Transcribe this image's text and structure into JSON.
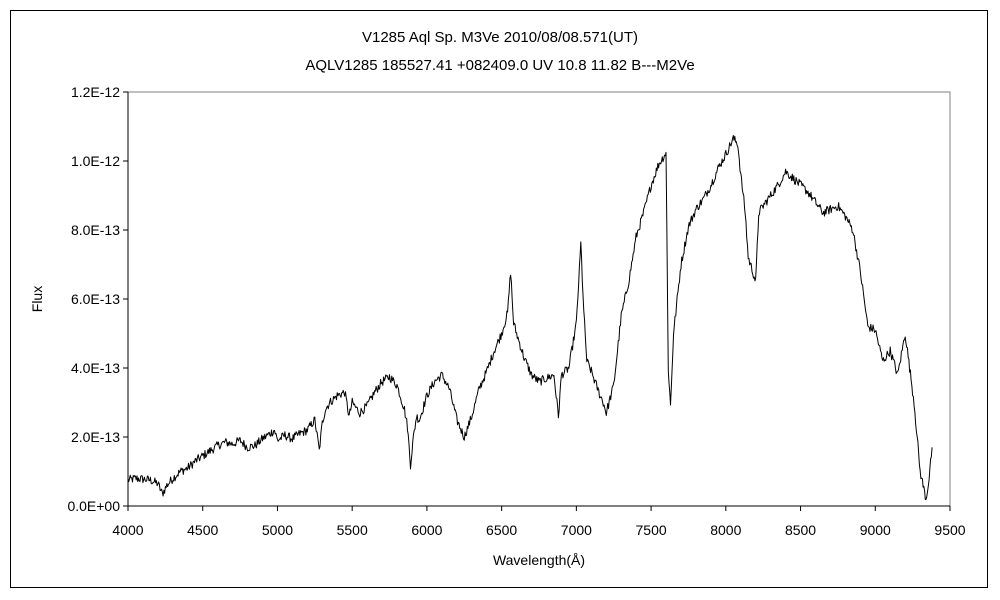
{
  "chart_data": {
    "type": "line",
    "title": "V1285 Aql    Sp. M3Ve    2010/08/08.571(UT)",
    "subtitle": "AQLV1285 185527.41 +082409.0 UV 10.8 11.82 B---M2Ve",
    "xlabel": "Wavelength(Å)",
    "ylabel": "Flux",
    "xlim": [
      4000,
      9500
    ],
    "ylim": [
      0,
      1.2e-12
    ],
    "xticks": [
      "4000",
      "4500",
      "5000",
      "5500",
      "6000",
      "6500",
      "7000",
      "7500",
      "8000",
      "8500",
      "9000",
      "9500"
    ],
    "yticks": [
      "0.0E+00",
      "2.0E-13",
      "4.0E-13",
      "6.0E-13",
      "8.0E-13",
      "1.0E-12",
      "1.2E-12"
    ],
    "grid": false,
    "legend": "none",
    "line_color": "#000000",
    "series": [
      {
        "x": [
          4000,
          4050,
          4100,
          4150,
          4200,
          4230,
          4260,
          4300,
          4350,
          4400,
          4450,
          4500,
          4550,
          4600,
          4650,
          4700,
          4750,
          4800,
          4850,
          4900,
          4950,
          4980,
          5000,
          5050,
          5100,
          5150,
          5200,
          5250,
          5280,
          5300,
          5320,
          5350,
          5400,
          5450,
          5480,
          5500,
          5550,
          5600,
          5650,
          5700,
          5750,
          5800,
          5850,
          5870,
          5890,
          5910,
          5930,
          5950,
          6000,
          6050,
          6100,
          6150,
          6200,
          6250,
          6300,
          6350,
          6400,
          6450,
          6500,
          6540,
          6560,
          6580,
          6600,
          6650,
          6700,
          6750,
          6800,
          6850,
          6880,
          6900,
          6950,
          7000,
          7030,
          7050,
          7070,
          7100,
          7150,
          7180,
          7200,
          7250,
          7300,
          7350,
          7400,
          7450,
          7500,
          7550,
          7580,
          7600,
          7615,
          7630,
          7650,
          7700,
          7750,
          7800,
          7850,
          7900,
          7950,
          8000,
          8050,
          8080,
          8100,
          8130,
          8150,
          8180,
          8200,
          8220,
          8250,
          8300,
          8350,
          8400,
          8450,
          8500,
          8550,
          8600,
          8650,
          8700,
          8750,
          8800,
          8850,
          8900,
          8950,
          9000,
          9050,
          9100,
          9150,
          9200,
          9230,
          9260,
          9280,
          9300,
          9320,
          9340,
          9360,
          9380
        ],
        "y": [
          7.5e-14,
          8e-14,
          7.8e-14,
          7.5e-14,
          6.5e-14,
          3.5e-14,
          6e-14,
          8e-14,
          1e-13,
          1.1e-13,
          1.3e-13,
          1.45e-13,
          1.6e-13,
          1.75e-13,
          1.85e-13,
          1.8e-13,
          1.9e-13,
          1.7e-13,
          1.75e-13,
          1.95e-13,
          2.1e-13,
          2.2e-13,
          1.9e-13,
          2.05e-13,
          1.95e-13,
          2.1e-13,
          2.2e-13,
          2.5e-13,
          1.6e-13,
          2.4e-13,
          2.8e-13,
          3e-13,
          3.2e-13,
          3.3e-13,
          2.6e-13,
          3e-13,
          2.7e-13,
          2.9e-13,
          3.3e-13,
          3.6e-13,
          3.75e-13,
          3.5e-13,
          2.8e-13,
          2.3e-13,
          1.2e-13,
          2e-13,
          2.6e-13,
          2.5e-13,
          3.2e-13,
          3.6e-13,
          3.8e-13,
          3.4e-13,
          2.5e-13,
          2e-13,
          2.6e-13,
          3.4e-13,
          3.9e-13,
          4.5e-13,
          5e-13,
          5.6e-13,
          6.8e-13,
          5.3e-13,
          5e-13,
          4.3e-13,
          3.8e-13,
          3.6e-13,
          3.7e-13,
          3.8e-13,
          2.6e-13,
          3.8e-13,
          4e-13,
          5.3e-13,
          7.6e-13,
          5.6e-13,
          4.2e-13,
          3.9e-13,
          3.3e-13,
          3e-13,
          2.7e-13,
          3.5e-13,
          5.5e-13,
          6.5e-13,
          7.8e-13,
          8.5e-13,
          9.3e-13,
          9.9e-13,
          1.01e-12,
          1.025e-12,
          4e-13,
          2.9e-13,
          5e-13,
          7e-13,
          8.1e-13,
          8.6e-13,
          8.9e-13,
          9.3e-13,
          9.8e-13,
          1.02e-12,
          1.065e-12,
          1.05e-12,
          9.6e-13,
          8.5e-13,
          7.2e-13,
          6.8e-13,
          6.5e-13,
          8.5e-13,
          8.7e-13,
          9e-13,
          9.3e-13,
          9.7e-13,
          9.5e-13,
          9.3e-13,
          9.1e-13,
          8.8e-13,
          8.5e-13,
          8.6e-13,
          8.7e-13,
          8.4e-13,
          8e-13,
          6.8e-13,
          5.2e-13,
          5.1e-13,
          4.2e-13,
          4.5e-13,
          3.8e-13,
          5e-13,
          4e-13,
          3e-13,
          2e-13,
          1e-13,
          6e-14,
          2e-14,
          8e-14,
          1.7e-13
        ]
      }
    ]
  }
}
